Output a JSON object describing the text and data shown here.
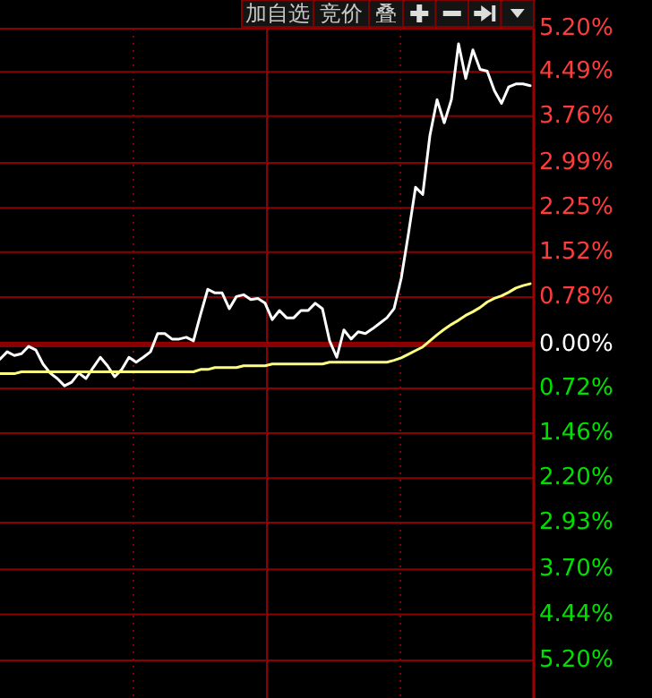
{
  "chart_data": {
    "type": "line",
    "categories": [
      null,
      null,
      null,
      null,
      null,
      null,
      null,
      null,
      null,
      null,
      null,
      null,
      null,
      null,
      null,
      null,
      null,
      null,
      null,
      null,
      null,
      null,
      null,
      null,
      null,
      null,
      null,
      null,
      null,
      null,
      null,
      null,
      null,
      null,
      null,
      null,
      null,
      null,
      null,
      null,
      null,
      null,
      null,
      null,
      null,
      null,
      null,
      null,
      null,
      null,
      null,
      null,
      null,
      null,
      null,
      null,
      null,
      null,
      null,
      null,
      null,
      null,
      null,
      null,
      null,
      null,
      null,
      null,
      null,
      null,
      null,
      null,
      null,
      null,
      null
    ],
    "series": [
      {
        "color": "#ffffff",
        "values": [
          -0.24,
          -0.12,
          -0.18,
          -0.15,
          -0.03,
          -0.09,
          -0.32,
          -0.47,
          -0.56,
          -0.68,
          -0.62,
          -0.47,
          -0.56,
          -0.38,
          -0.21,
          -0.35,
          -0.53,
          -0.41,
          -0.21,
          -0.29,
          -0.21,
          -0.12,
          0.18,
          0.18,
          0.09,
          0.09,
          0.12,
          0.06,
          0.5,
          0.91,
          0.85,
          0.85,
          0.59,
          0.79,
          0.82,
          0.74,
          0.76,
          0.68,
          0.41,
          0.56,
          0.44,
          0.44,
          0.56,
          0.56,
          0.68,
          0.59,
          0.06,
          -0.21,
          0.24,
          0.09,
          0.21,
          0.18,
          0.26,
          0.35,
          0.44,
          0.59,
          1.09,
          1.82,
          2.59,
          2.47,
          3.44,
          4.03,
          3.65,
          4.03,
          4.95,
          4.38,
          4.85,
          4.53,
          4.5,
          4.18,
          3.97,
          4.24,
          4.29,
          4.29,
          4.26
        ]
      },
      {
        "color": "#ffff80",
        "values": [
          -0.48,
          -0.48,
          -0.48,
          -0.45,
          -0.45,
          -0.45,
          -0.45,
          -0.45,
          -0.45,
          -0.45,
          -0.45,
          -0.45,
          -0.45,
          -0.45,
          -0.45,
          -0.45,
          -0.45,
          -0.45,
          -0.45,
          -0.45,
          -0.45,
          -0.45,
          -0.45,
          -0.45,
          -0.45,
          -0.45,
          -0.45,
          -0.45,
          -0.41,
          -0.41,
          -0.38,
          -0.38,
          -0.38,
          -0.38,
          -0.35,
          -0.35,
          -0.35,
          -0.35,
          -0.32,
          -0.32,
          -0.32,
          -0.32,
          -0.32,
          -0.32,
          -0.32,
          -0.32,
          -0.29,
          -0.29,
          -0.29,
          -0.29,
          -0.29,
          -0.29,
          -0.29,
          -0.29,
          -0.29,
          -0.26,
          -0.22,
          -0.16,
          -0.1,
          -0.04,
          0.06,
          0.16,
          0.25,
          0.33,
          0.4,
          0.48,
          0.54,
          0.61,
          0.7,
          0.76,
          0.8,
          0.86,
          0.93,
          0.97,
          1.0
        ]
      }
    ],
    "ylim": [
      -5.2,
      5.2
    ],
    "yticks": [
      {
        "value": 5.2,
        "label": "5.20%"
      },
      {
        "value": 4.49,
        "label": "4.49%"
      },
      {
        "value": 3.76,
        "label": "3.76%"
      },
      {
        "value": 2.99,
        "label": "2.99%"
      },
      {
        "value": 2.25,
        "label": "2.25%"
      },
      {
        "value": 1.52,
        "label": "1.52%"
      },
      {
        "value": 0.78,
        "label": "0.78%"
      },
      {
        "value": 0,
        "label": "0.00%"
      },
      {
        "value": -0.72,
        "label": "0.72%"
      },
      {
        "value": -1.46,
        "label": "1.46%"
      },
      {
        "value": -2.2,
        "label": "2.20%"
      },
      {
        "value": -2.93,
        "label": "2.93%"
      },
      {
        "value": -3.7,
        "label": "3.70%"
      },
      {
        "value": -4.44,
        "label": "4.44%"
      },
      {
        "value": -5.2,
        "label": "5.20%"
      }
    ],
    "ref_lines": [
      {
        "axis": "y",
        "value": 0,
        "color": "#8b0000"
      }
    ],
    "grid": true,
    "tick_labels": "y",
    "annotations": [
      "加自选",
      "竞价",
      "叠"
    ]
  }
}
